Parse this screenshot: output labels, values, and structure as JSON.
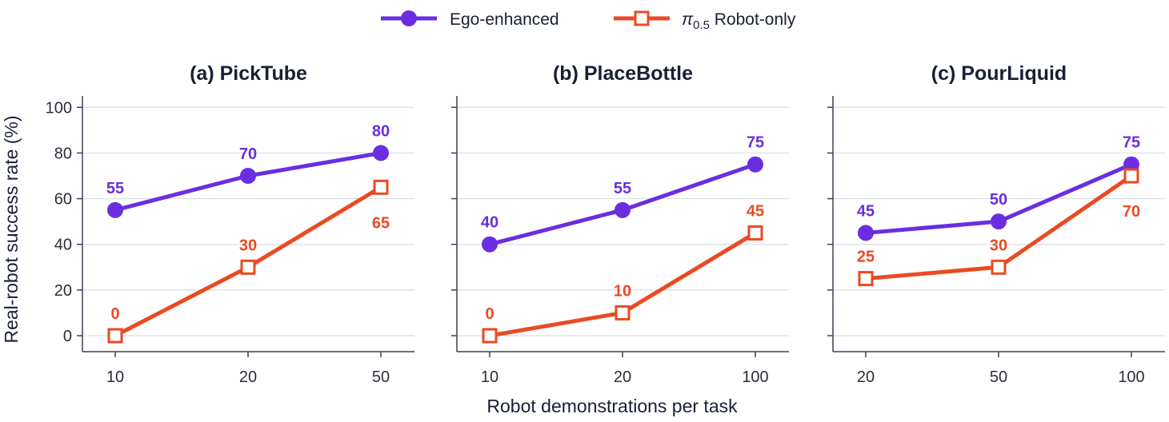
{
  "colors": {
    "ego": "#6a2ee0",
    "robot": "#ea4a22"
  },
  "legend": {
    "position": "top-center",
    "ego_label": "Ego-enhanced",
    "robot_symbol": "π",
    "robot_subscript": "0.5",
    "robot_label": " Robot-only"
  },
  "xlabel": "Robot demonstrations per task",
  "ylabel": "Real-robot success rate (%)",
  "chart_data": [
    {
      "type": "line",
      "title": "(a) PickTube",
      "categories": [
        "10",
        "20",
        "50"
      ],
      "ylim": [
        -7,
        105
      ],
      "yticks": [
        0,
        20,
        40,
        60,
        80,
        100
      ],
      "grid": true,
      "series": [
        {
          "name": "Ego-enhanced",
          "values": [
            55,
            70,
            80
          ]
        },
        {
          "name": "π0.5 Robot-only",
          "values": [
            0,
            30,
            65
          ]
        }
      ],
      "label_above": {
        "ego": [
          true,
          true,
          true
        ],
        "robot": [
          true,
          true,
          false
        ]
      }
    },
    {
      "type": "line",
      "title": "(b) PlaceBottle",
      "categories": [
        "10",
        "20",
        "100"
      ],
      "ylim": [
        -7,
        105
      ],
      "yticks": [
        0,
        20,
        40,
        60,
        80,
        100
      ],
      "grid": true,
      "series": [
        {
          "name": "Ego-enhanced",
          "values": [
            40,
            55,
            75
          ]
        },
        {
          "name": "π0.5 Robot-only",
          "values": [
            0,
            10,
            45
          ]
        }
      ],
      "label_above": {
        "ego": [
          true,
          true,
          true
        ],
        "robot": [
          true,
          true,
          true
        ]
      }
    },
    {
      "type": "line",
      "title": "(c) PourLiquid",
      "categories": [
        "20",
        "50",
        "100"
      ],
      "ylim": [
        -7,
        105
      ],
      "yticks": [
        0,
        20,
        40,
        60,
        80,
        100
      ],
      "grid": true,
      "series": [
        {
          "name": "Ego-enhanced",
          "values": [
            45,
            50,
            75
          ]
        },
        {
          "name": "π0.5 Robot-only",
          "values": [
            25,
            30,
            70
          ]
        }
      ],
      "label_above": {
        "ego": [
          true,
          true,
          true
        ],
        "robot": [
          true,
          true,
          false
        ]
      }
    }
  ]
}
